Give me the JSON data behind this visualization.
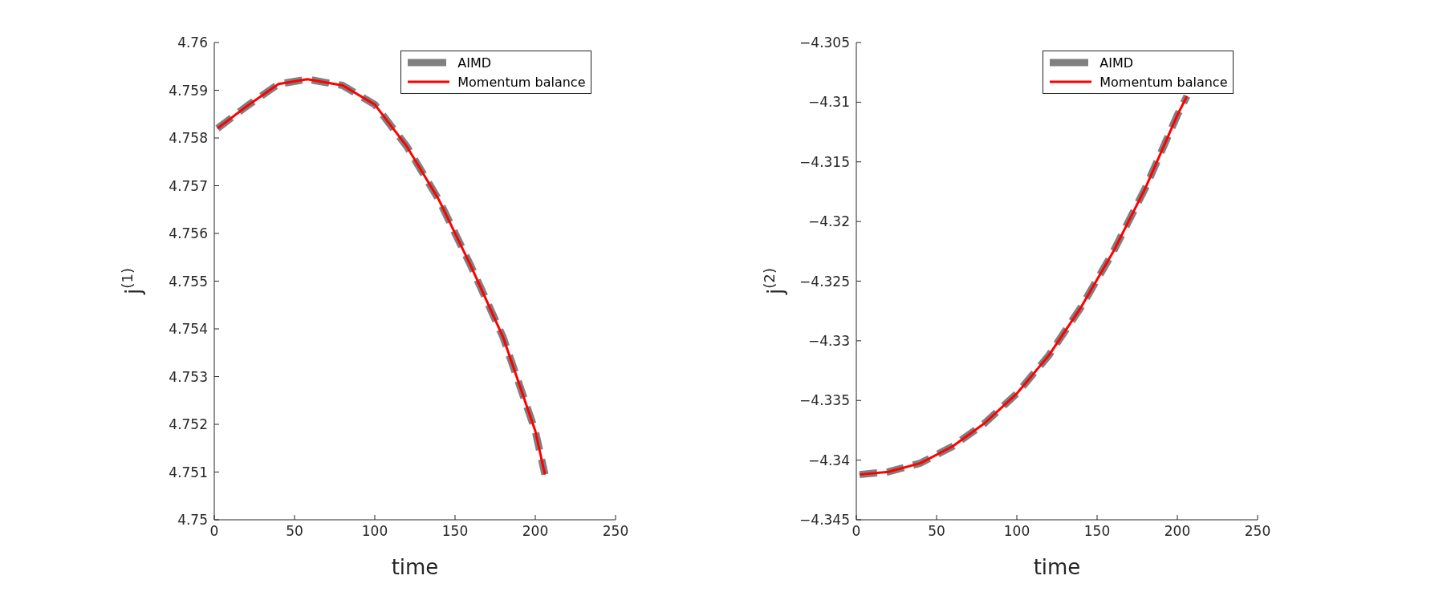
{
  "chart_data": [
    {
      "type": "line",
      "xlabel": "time",
      "ylabel": "j$^{(1)}$",
      "x": [
        2,
        20,
        40,
        58,
        80,
        100,
        120,
        140,
        160,
        180,
        200,
        206
      ],
      "xlim": [
        0,
        250
      ],
      "xticks": [
        0,
        50,
        100,
        150,
        200,
        250
      ],
      "ylim": [
        4.75,
        4.76
      ],
      "yticks": [
        4.75,
        4.751,
        4.752,
        4.753,
        4.754,
        4.755,
        4.756,
        4.757,
        4.758,
        4.759,
        4.76
      ],
      "legend": "top right",
      "grid": false,
      "marker": "none",
      "series": [
        {
          "name": "AIMD",
          "color": "#808080",
          "line_style": "dashed",
          "values": [
            4.7582,
            4.75866,
            4.75913,
            4.75923,
            4.7591,
            4.7587,
            4.75782,
            4.7567,
            4.75531,
            4.75382,
            4.75186,
            4.75095
          ]
        },
        {
          "name": "Momentum balance",
          "color": "#ff0000",
          "line_style": "solid",
          "values": [
            4.7582,
            4.75866,
            4.75913,
            4.75923,
            4.7591,
            4.7587,
            4.75782,
            4.7567,
            4.75531,
            4.75382,
            4.75186,
            4.75095
          ]
        }
      ]
    },
    {
      "type": "line",
      "xlabel": "time",
      "ylabel": "j$^{(2)}$",
      "x": [
        2,
        20,
        40,
        60,
        80,
        100,
        120,
        140,
        160,
        180,
        200,
        206
      ],
      "xlim": [
        0,
        250
      ],
      "xticks": [
        0,
        50,
        100,
        150,
        200,
        250
      ],
      "ylim": [
        -4.345,
        -4.305
      ],
      "yticks": [
        {
          "value": -4.345,
          "label": "−4.345"
        },
        {
          "value": -4.34,
          "label": "−4.34"
        },
        {
          "value": -4.335,
          "label": "−4.335"
        },
        {
          "value": -4.33,
          "label": "−4.33"
        },
        {
          "value": -4.325,
          "label": "−4.325"
        },
        {
          "value": -4.32,
          "label": "−4.32"
        },
        {
          "value": -4.315,
          "label": "−4.315"
        },
        {
          "value": -4.31,
          "label": "−4.31"
        },
        {
          "value": -4.305,
          "label": "−4.305"
        }
      ],
      "legend": "top right",
      "grid": false,
      "marker": "none",
      "series": [
        {
          "name": "AIMD",
          "color": "#808080",
          "line_style": "dashed",
          "values": [
            -4.34121,
            -4.34098,
            -4.34025,
            -4.33885,
            -4.3369,
            -4.33442,
            -4.33121,
            -4.32719,
            -4.32255,
            -4.31722,
            -4.31109,
            -4.30949
          ]
        },
        {
          "name": "Momentum balance",
          "color": "#ff0000",
          "line_style": "solid",
          "values": [
            -4.34121,
            -4.34098,
            -4.34025,
            -4.33885,
            -4.3369,
            -4.33442,
            -4.33121,
            -4.32719,
            -4.32255,
            -4.31722,
            -4.31109,
            -4.30949
          ]
        }
      ]
    }
  ]
}
